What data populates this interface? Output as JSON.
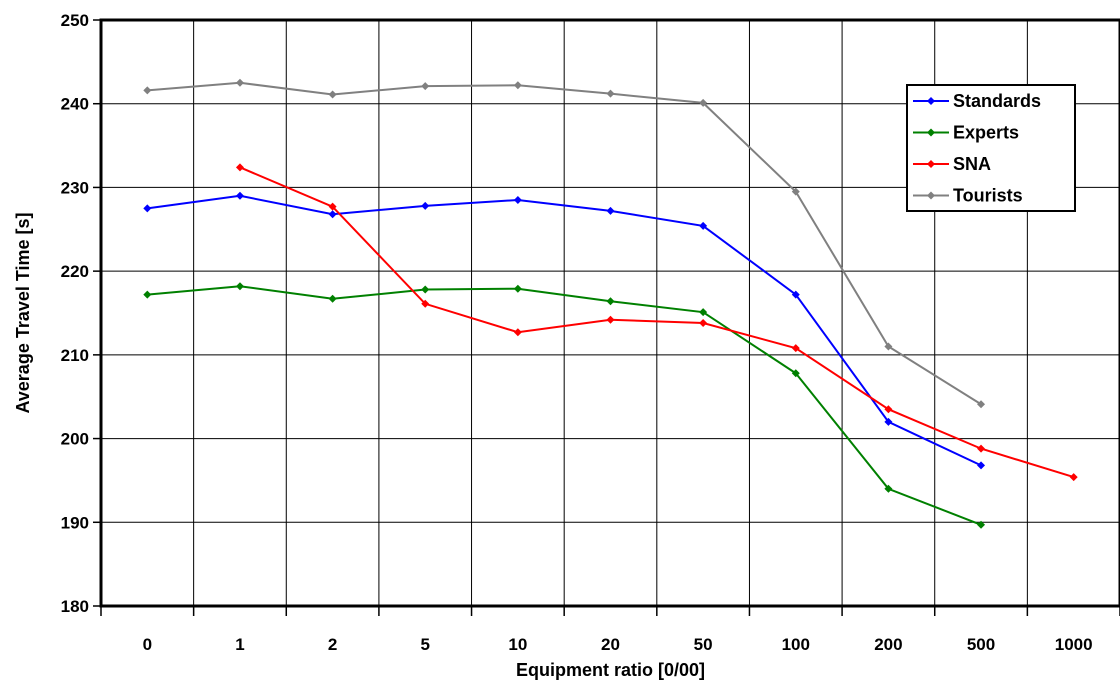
{
  "chart_data": {
    "type": "line",
    "title": "",
    "xlabel": "Equipment ratio [0/00]",
    "ylabel": "Average Travel Time [s]",
    "categories": [
      "0",
      "1",
      "2",
      "5",
      "10",
      "20",
      "50",
      "100",
      "200",
      "500",
      "1000"
    ],
    "ylim": [
      180,
      250
    ],
    "yticks": [
      "180",
      "190",
      "200",
      "210",
      "220",
      "230",
      "240",
      "250"
    ],
    "grid": true,
    "legend_position": "top-right",
    "series": [
      {
        "name": "Standards",
        "color": "#0000ff",
        "values": [
          227.5,
          229.0,
          226.8,
          227.8,
          228.5,
          227.2,
          225.4,
          217.2,
          202.0,
          196.8,
          null
        ]
      },
      {
        "name": "Experts",
        "color": "#008000",
        "values": [
          217.2,
          218.2,
          216.7,
          217.8,
          217.9,
          216.4,
          215.1,
          207.8,
          194.0,
          189.7,
          null
        ]
      },
      {
        "name": "SNA",
        "color": "#ff0000",
        "values": [
          null,
          232.4,
          227.7,
          216.1,
          212.7,
          214.2,
          213.8,
          210.8,
          203.5,
          198.8,
          195.4
        ]
      },
      {
        "name": "Tourists",
        "color": "#808080",
        "values": [
          241.6,
          242.5,
          241.1,
          242.1,
          242.2,
          241.2,
          240.1,
          229.5,
          211.0,
          204.1,
          null
        ]
      }
    ]
  }
}
